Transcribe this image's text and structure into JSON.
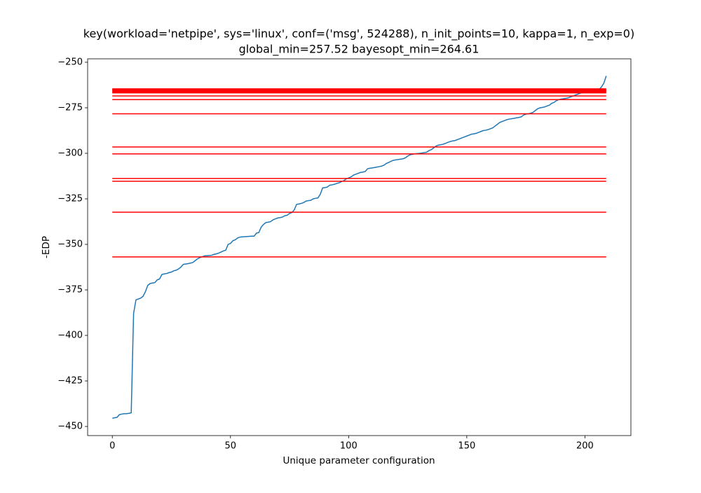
{
  "chart_data": {
    "type": "line",
    "title": "key(workload='netpipe', sys='linux', conf=('msg', 524288), n_init_points=10, kappa=1, n_exp=0)",
    "subtitle": "global_min=257.52 bayesopt_min=264.61",
    "x_label": "Unique parameter configuration",
    "y_label": "-EDP",
    "xlim": [
      -10.45,
      219.45
    ],
    "ylim": [
      -455.0,
      -248.1
    ],
    "xticks": [
      0,
      50,
      100,
      150,
      200
    ],
    "yticks": [
      {
        "value": -250,
        "label": "−250"
      },
      {
        "value": -275,
        "label": "−275"
      },
      {
        "value": -300,
        "label": "−300"
      },
      {
        "value": -325,
        "label": "−325"
      },
      {
        "value": -350,
        "label": "−350"
      },
      {
        "value": -375,
        "label": "−375"
      },
      {
        "value": -400,
        "label": "−400"
      },
      {
        "value": -425,
        "label": "−425"
      },
      {
        "value": -450,
        "label": "−450"
      }
    ],
    "series": [
      {
        "color": "#1f77b4",
        "x": [
          0,
          1,
          2,
          3,
          4,
          5,
          6,
          7,
          8,
          9,
          10,
          11,
          12,
          13,
          14,
          15,
          16,
          17,
          18,
          19,
          20,
          21,
          22,
          23,
          24,
          25,
          26,
          27,
          28,
          29,
          30,
          31,
          32,
          33,
          34,
          35,
          36,
          37,
          38,
          39,
          40,
          41,
          42,
          43,
          44,
          45,
          46,
          47,
          48,
          49,
          50,
          51,
          52,
          53,
          54,
          55,
          56,
          57,
          58,
          59,
          60,
          61,
          62,
          63,
          64,
          65,
          66,
          67,
          68,
          69,
          70,
          71,
          72,
          73,
          74,
          75,
          76,
          77,
          78,
          79,
          80,
          81,
          82,
          83,
          84,
          85,
          86,
          87,
          88,
          89,
          90,
          91,
          92,
          93,
          94,
          95,
          96,
          97,
          98,
          99,
          100,
          101,
          102,
          103,
          104,
          105,
          106,
          107,
          108,
          109,
          110,
          111,
          112,
          113,
          114,
          115,
          116,
          117,
          118,
          119,
          120,
          121,
          122,
          123,
          124,
          125,
          126,
          127,
          128,
          129,
          130,
          131,
          132,
          133,
          134,
          135,
          136,
          137,
          138,
          139,
          140,
          141,
          142,
          143,
          144,
          145,
          146,
          147,
          148,
          149,
          150,
          151,
          152,
          153,
          154,
          155,
          156,
          157,
          158,
          159,
          160,
          161,
          162,
          163,
          164,
          165,
          166,
          167,
          168,
          169,
          170,
          171,
          172,
          173,
          174,
          175,
          176,
          177,
          178,
          179,
          180,
          181,
          182,
          183,
          184,
          185,
          186,
          187,
          188,
          189,
          190,
          191,
          192,
          193,
          194,
          195,
          196,
          197,
          198,
          199,
          200,
          201,
          202,
          203,
          204,
          205,
          206,
          207,
          208,
          209
        ],
        "values": [
          -445.5,
          -445.2,
          -445,
          -443.5,
          -443.2,
          -443,
          -443,
          -442.8,
          -442.5,
          -388,
          -380.5,
          -380,
          -379.5,
          -378.5,
          -376,
          -372.5,
          -371.5,
          -371.2,
          -371,
          -369.5,
          -369,
          -366.5,
          -366.2,
          -366,
          -365.5,
          -365.2,
          -364.5,
          -364.2,
          -363.5,
          -362.5,
          -361,
          -360.8,
          -360.6,
          -360.3,
          -360,
          -359,
          -358,
          -357.3,
          -356.8,
          -356.3,
          -356.2,
          -356.1,
          -356,
          -355.5,
          -355.2,
          -354.8,
          -354.2,
          -353.6,
          -353.2,
          -350,
          -349.5,
          -348,
          -347.5,
          -346.5,
          -346,
          -345.9,
          -345.8,
          -345.7,
          -345.6,
          -345.5,
          -345.5,
          -343.8,
          -343.5,
          -340.5,
          -339,
          -338,
          -337.8,
          -337.5,
          -336.5,
          -336,
          -335.5,
          -335.3,
          -335,
          -334.3,
          -334,
          -333,
          -332.5,
          -331,
          -328,
          -327.8,
          -327.5,
          -327,
          -326.2,
          -326,
          -325.8,
          -325,
          -324.7,
          -324.5,
          -322.5,
          -319,
          -318.8,
          -318.5,
          -317.5,
          -317.3,
          -317,
          -316.5,
          -316.2,
          -315.5,
          -315,
          -314,
          -313.5,
          -313,
          -312,
          -311.5,
          -311,
          -310.5,
          -310.3,
          -310,
          -308.5,
          -308.2,
          -308,
          -307.8,
          -307.5,
          -307.3,
          -307,
          -306.5,
          -305.5,
          -305,
          -304.3,
          -303.8,
          -303.6,
          -303.4,
          -303.2,
          -303,
          -302.5,
          -301.5,
          -300.8,
          -300.5,
          -300.3,
          -300.1,
          -300,
          -299.8,
          -299.6,
          -299.4,
          -298.5,
          -298,
          -297,
          -296,
          -295.5,
          -295.3,
          -295,
          -294.5,
          -294,
          -293.5,
          -293.2,
          -293,
          -292.5,
          -292,
          -291.5,
          -291,
          -290.5,
          -290,
          -289.5,
          -289.3,
          -289,
          -288.5,
          -288,
          -287.5,
          -287.3,
          -287,
          -286.5,
          -286,
          -285,
          -284,
          -283,
          -282.5,
          -282,
          -281.5,
          -281.2,
          -281,
          -280.8,
          -280.5,
          -280.3,
          -280,
          -279,
          -278.5,
          -278.3,
          -278,
          -277.5,
          -276.5,
          -275.5,
          -275,
          -274.8,
          -274.5,
          -274,
          -273.5,
          -272.5,
          -272,
          -271,
          -270.5,
          -270.2,
          -270,
          -269.8,
          -269.5,
          -269,
          -268.5,
          -268,
          -267.5,
          -267,
          -266.5,
          -266.3,
          -266,
          -265.8,
          -265.6,
          -265.4,
          -265.2,
          -265,
          -263.5,
          -261.5,
          -257.52
        ]
      }
    ],
    "hlines": {
      "color": "#ff0000",
      "xmin": 0,
      "xmax": 209,
      "values": [
        -264.61,
        -265,
        -265.3,
        -265.6,
        -266,
        -266.4,
        -266.8,
        -268.5,
        -270.5,
        -278.3,
        -296.5,
        -300.3,
        -313.8,
        -315.3,
        -332.3,
        -356.9
      ]
    }
  }
}
